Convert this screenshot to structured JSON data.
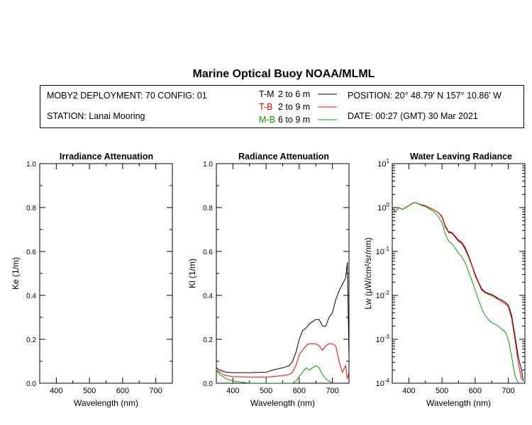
{
  "title": "Marine Optical Buoy NOAA/MLML",
  "info": {
    "deployment": "MOBY2 DEPLOYMENT: 70 CONFIG: 01",
    "station": "STATION: Lanai Mooring",
    "position": "POSITION: 20° 48.79' N   157° 10.86' W",
    "date": "DATE: 00:27 (GMT) 30 Mar 2021",
    "legend": [
      {
        "code": "T-M",
        "range": "2 to 6  m",
        "color": "#000000"
      },
      {
        "code": "T-B",
        "range": "2 to 9  m",
        "color": "#ff0000"
      },
      {
        "code": "M-B",
        "range": "6 to 9  m",
        "color": "#00a000"
      }
    ]
  },
  "chart_data": [
    {
      "type": "line",
      "title": "Irradiance Attenuation",
      "xlabel": "Wavelength (nm)",
      "ylabel": "Ke  (1/m)",
      "xlim": [
        350,
        750
      ],
      "ylim": [
        0.0,
        1.0
      ],
      "xticks": [
        "400",
        "500",
        "600",
        "700"
      ],
      "yticks": [
        "0.0",
        "0.2",
        "0.4",
        "0.6",
        "0.8",
        "1.0"
      ],
      "series": []
    },
    {
      "type": "line",
      "title": "Radiance Attenuation",
      "xlabel": "Wavelength (nm)",
      "ylabel": "Kl  (1/m)",
      "xlim": [
        350,
        750
      ],
      "ylim": [
        0.0,
        1.0
      ],
      "xticks": [
        "400",
        "500",
        "600",
        "700"
      ],
      "yticks": [
        "0.0",
        "0.2",
        "0.4",
        "0.6",
        "0.8",
        "1.0"
      ],
      "series": [
        {
          "name": "T-M",
          "color": "#000000",
          "x": [
            350,
            360,
            370,
            380,
            400,
            450,
            500,
            520,
            550,
            570,
            580,
            590,
            600,
            610,
            620,
            630,
            640,
            650,
            660,
            670,
            680,
            690,
            700,
            710,
            720,
            730,
            740,
            745,
            750
          ],
          "y": [
            0.07,
            0.06,
            0.055,
            0.05,
            0.048,
            0.048,
            0.05,
            0.06,
            0.07,
            0.08,
            0.1,
            0.14,
            0.2,
            0.24,
            0.25,
            0.27,
            0.28,
            0.29,
            0.29,
            0.26,
            0.26,
            0.3,
            0.32,
            0.38,
            0.42,
            0.45,
            0.48,
            0.55,
            0.12
          ]
        },
        {
          "name": "T-B",
          "color": "#ff0000",
          "x": [
            350,
            360,
            370,
            380,
            400,
            450,
            500,
            520,
            550,
            570,
            580,
            590,
            600,
            610,
            620,
            630,
            640,
            650,
            660,
            670,
            680,
            690,
            700,
            710,
            720,
            730,
            740,
            745,
            750
          ],
          "y": [
            0.06,
            0.05,
            0.04,
            0.035,
            0.03,
            0.028,
            0.028,
            0.03,
            0.035,
            0.04,
            0.05,
            0.08,
            0.13,
            0.15,
            0.17,
            0.18,
            0.18,
            0.18,
            0.17,
            0.15,
            0.17,
            0.18,
            0.18,
            0.17,
            0.1,
            0.05,
            0.08,
            0.02,
            0.05
          ]
        },
        {
          "name": "M-B",
          "color": "#00a000",
          "x": [
            350,
            360,
            370,
            380,
            400,
            450,
            500,
            520,
            550,
            570,
            580,
            590,
            600,
            610,
            620,
            630,
            640,
            650,
            660,
            670,
            680,
            690,
            700
          ],
          "y": [
            0.06,
            0.04,
            0.03,
            0.02,
            0.01,
            0.0,
            0.0,
            0.0,
            0.0,
            0.0,
            0.0,
            0.01,
            0.03,
            0.05,
            0.07,
            0.06,
            0.07,
            0.08,
            0.07,
            0.04,
            0.02,
            0.01,
            0.0
          ]
        }
      ]
    },
    {
      "type": "line",
      "title": "Water Leaving Radiance",
      "xlabel": "Wavelength (nm)",
      "ylabel": "Lw  (μW/cm²/sr/nm)",
      "yscale": "log",
      "xlim": [
        350,
        750
      ],
      "ylim": [
        0.0001,
        10
      ],
      "xticks": [
        "400",
        "500",
        "600",
        "700"
      ],
      "yticks": [
        {
          "base": "10",
          "exp": "-4"
        },
        {
          "base": "10",
          "exp": "-3"
        },
        {
          "base": "10",
          "exp": "-2"
        },
        {
          "base": "10",
          "exp": "-1"
        },
        {
          "base": "10",
          "exp": "0"
        },
        {
          "base": "10",
          "exp": "1"
        }
      ],
      "series": [
        {
          "name": "T-M",
          "color": "#000000",
          "x": [
            350,
            360,
            370,
            380,
            390,
            400,
            410,
            420,
            430,
            440,
            450,
            460,
            470,
            480,
            490,
            500,
            510,
            520,
            530,
            540,
            550,
            560,
            570,
            580,
            590,
            600,
            610,
            620,
            630,
            640,
            650,
            660,
            670,
            680,
            690,
            700,
            710,
            720,
            730,
            740,
            745
          ],
          "y": [
            1.0,
            0.8,
            1.0,
            0.9,
            1.0,
            1.1,
            1.25,
            1.3,
            1.2,
            1.15,
            1.1,
            1.0,
            0.92,
            0.85,
            0.75,
            0.62,
            0.38,
            0.28,
            0.27,
            0.22,
            0.18,
            0.16,
            0.12,
            0.08,
            0.05,
            0.03,
            0.02,
            0.014,
            0.012,
            0.011,
            0.0105,
            0.0095,
            0.0085,
            0.0078,
            0.007,
            0.006,
            0.0035,
            0.0012,
            0.0004,
            0.0002,
            0.00011
          ]
        },
        {
          "name": "T-B",
          "color": "#ff0000",
          "x": [
            350,
            360,
            370,
            380,
            390,
            400,
            410,
            420,
            430,
            440,
            450,
            460,
            470,
            480,
            490,
            500,
            510,
            520,
            530,
            540,
            550,
            560,
            570,
            580,
            590,
            600,
            610,
            620,
            630,
            640,
            650,
            660,
            670,
            680,
            690,
            700,
            710,
            720,
            730,
            740
          ],
          "y": [
            1.0,
            0.8,
            1.0,
            0.9,
            1.0,
            1.1,
            1.25,
            1.3,
            1.2,
            1.15,
            1.1,
            1.0,
            0.92,
            0.85,
            0.75,
            0.6,
            0.36,
            0.27,
            0.26,
            0.21,
            0.17,
            0.15,
            0.11,
            0.075,
            0.048,
            0.028,
            0.019,
            0.013,
            0.0115,
            0.0105,
            0.0098,
            0.009,
            0.008,
            0.0072,
            0.0065,
            0.0055,
            0.003,
            0.001,
            0.0003,
            0.00012
          ]
        },
        {
          "name": "M-B",
          "color": "#00a000",
          "x": [
            350,
            360,
            370,
            380,
            390,
            400,
            410,
            420,
            430,
            440,
            450,
            460,
            470,
            480,
            490,
            500,
            510,
            520,
            530,
            540,
            550,
            560,
            570,
            580,
            590,
            600,
            610,
            620,
            630,
            640,
            650,
            660,
            670,
            680,
            690,
            700,
            710,
            720,
            730
          ],
          "y": [
            1.0,
            0.8,
            1.0,
            0.9,
            1.0,
            1.1,
            1.25,
            1.3,
            1.2,
            1.1,
            1.05,
            0.95,
            0.85,
            0.75,
            0.6,
            0.45,
            0.25,
            0.17,
            0.15,
            0.12,
            0.09,
            0.075,
            0.055,
            0.035,
            0.022,
            0.013,
            0.008,
            0.005,
            0.0035,
            0.0028,
            0.0024,
            0.0022,
            0.002,
            0.0017,
            0.0015,
            0.001,
            0.0004,
            0.00015,
            0.0001
          ]
        }
      ]
    }
  ]
}
